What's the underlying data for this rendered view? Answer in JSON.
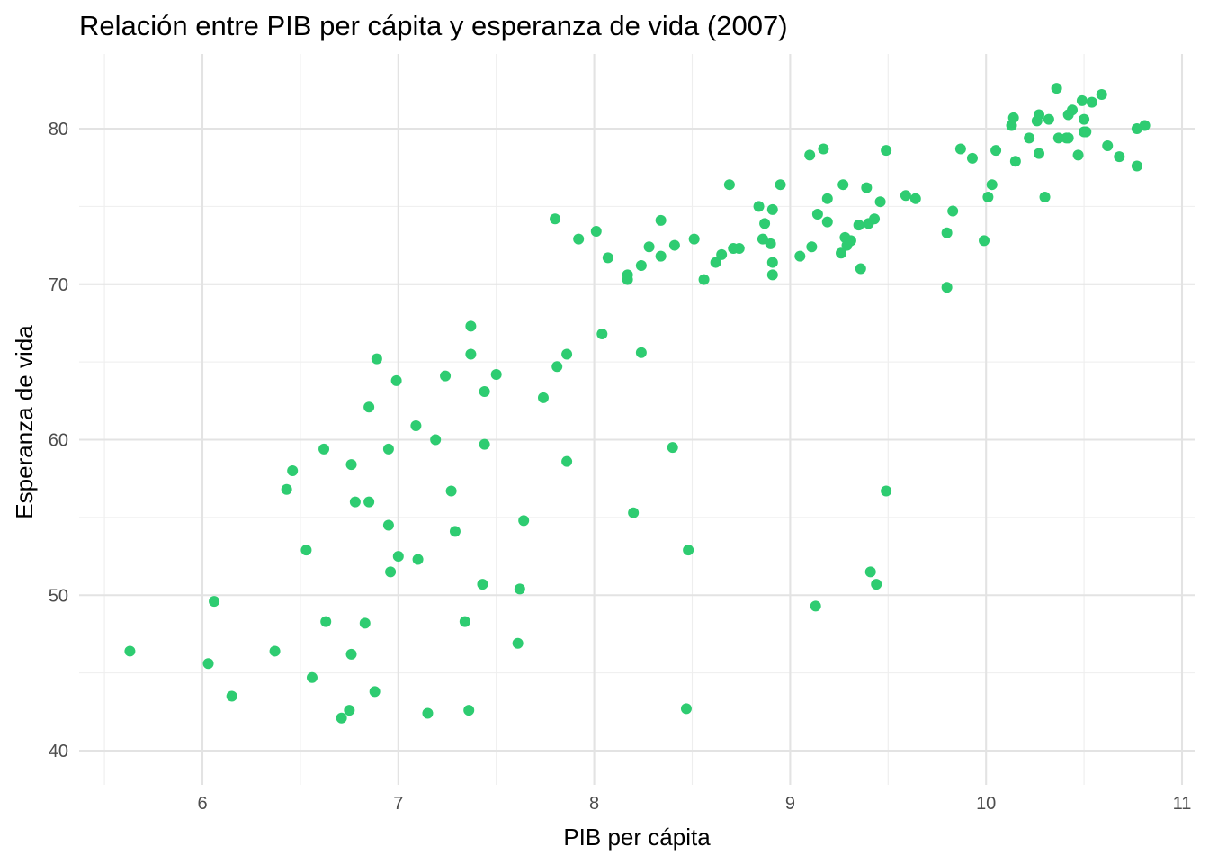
{
  "chart_data": {
    "type": "scatter",
    "title": "Relación entre PIB per cápita y esperanza de vida (2007)",
    "xlabel": "PIB per cápita",
    "ylabel": "Esperanza de vida",
    "xlim": [
      5.5,
      11.05
    ],
    "ylim": [
      38,
      84.5
    ],
    "xticks": [
      6,
      7,
      8,
      9,
      10,
      11
    ],
    "xtick_labels": [
      "6",
      "7",
      "8",
      "9",
      "10",
      "11"
    ],
    "yticks": [
      40,
      50,
      60,
      70,
      80
    ],
    "ytick_labels": [
      "40",
      "50",
      "60",
      "70",
      "80"
    ],
    "grid": true,
    "point_color": "#2ecc71",
    "x": [
      5.63,
      6.03,
      6.06,
      6.15,
      6.37,
      6.43,
      6.46,
      6.53,
      6.56,
      6.62,
      6.63,
      6.71,
      6.75,
      6.76,
      6.76,
      6.78,
      6.83,
      6.85,
      6.85,
      6.88,
      6.89,
      6.95,
      6.95,
      6.96,
      6.99,
      7.0,
      7.09,
      7.1,
      7.15,
      7.19,
      7.24,
      7.27,
      7.29,
      7.34,
      7.36,
      7.37,
      7.37,
      7.43,
      7.44,
      7.44,
      7.5,
      7.61,
      7.62,
      7.64,
      7.74,
      7.8,
      7.81,
      7.86,
      7.86,
      7.92,
      8.01,
      8.04,
      8.07,
      8.17,
      8.17,
      8.2,
      8.24,
      8.24,
      8.28,
      8.34,
      8.34,
      8.4,
      8.41,
      8.47,
      8.48,
      8.51,
      8.56,
      8.62,
      8.65,
      8.69,
      8.71,
      8.74,
      8.84,
      8.86,
      8.87,
      8.9,
      8.91,
      8.91,
      8.91,
      8.95,
      9.05,
      9.1,
      9.11,
      9.13,
      9.14,
      9.17,
      9.19,
      9.19,
      9.26,
      9.27,
      9.28,
      9.29,
      9.31,
      9.35,
      9.36,
      9.39,
      9.4,
      9.41,
      9.43,
      9.44,
      9.46,
      9.49,
      9.49,
      9.59,
      9.64,
      9.8,
      9.8,
      9.83,
      9.87,
      9.93,
      9.99,
      10.01,
      10.03,
      10.05,
      10.13,
      10.14,
      10.15,
      10.22,
      10.26,
      10.27,
      10.27,
      10.3,
      10.32,
      10.36,
      10.37,
      10.41,
      10.42,
      10.42,
      10.44,
      10.47,
      10.49,
      10.5,
      10.5,
      10.51,
      10.54,
      10.59,
      10.62,
      10.68,
      10.77,
      10.77,
      10.81
    ],
    "y": [
      46.4,
      45.6,
      49.6,
      43.5,
      46.4,
      56.8,
      58.0,
      52.9,
      44.7,
      59.4,
      48.3,
      42.1,
      42.6,
      46.2,
      58.4,
      56.0,
      48.2,
      62.1,
      56.0,
      43.8,
      65.2,
      59.4,
      54.5,
      51.5,
      63.8,
      52.5,
      60.9,
      52.3,
      42.4,
      60.0,
      64.1,
      56.7,
      54.1,
      48.3,
      42.6,
      65.5,
      67.3,
      50.7,
      63.1,
      59.7,
      64.2,
      46.9,
      50.4,
      54.8,
      62.7,
      74.2,
      64.7,
      65.5,
      58.6,
      72.9,
      73.4,
      66.8,
      71.7,
      70.3,
      70.6,
      55.3,
      71.2,
      65.6,
      72.4,
      71.8,
      74.1,
      59.5,
      72.5,
      42.7,
      52.9,
      72.9,
      70.3,
      71.4,
      71.9,
      76.4,
      72.3,
      72.3,
      75.0,
      72.9,
      73.9,
      72.6,
      71.4,
      70.6,
      74.8,
      76.4,
      71.8,
      78.3,
      72.4,
      49.3,
      74.5,
      78.7,
      74.0,
      75.5,
      72.0,
      76.4,
      73.0,
      72.5,
      72.8,
      73.8,
      71.0,
      76.2,
      73.9,
      51.5,
      74.2,
      50.7,
      75.3,
      78.6,
      56.7,
      75.7,
      75.5,
      73.3,
      69.8,
      74.7,
      78.7,
      78.1,
      72.8,
      75.6,
      76.4,
      78.6,
      80.2,
      80.7,
      77.9,
      79.4,
      80.5,
      78.4,
      80.9,
      75.6,
      80.6,
      82.6,
      79.4,
      79.4,
      79.4,
      80.9,
      81.2,
      78.3,
      81.8,
      79.8,
      80.6,
      79.8,
      81.7,
      82.2,
      78.9,
      78.2,
      80.0,
      77.6,
      80.2
    ]
  }
}
